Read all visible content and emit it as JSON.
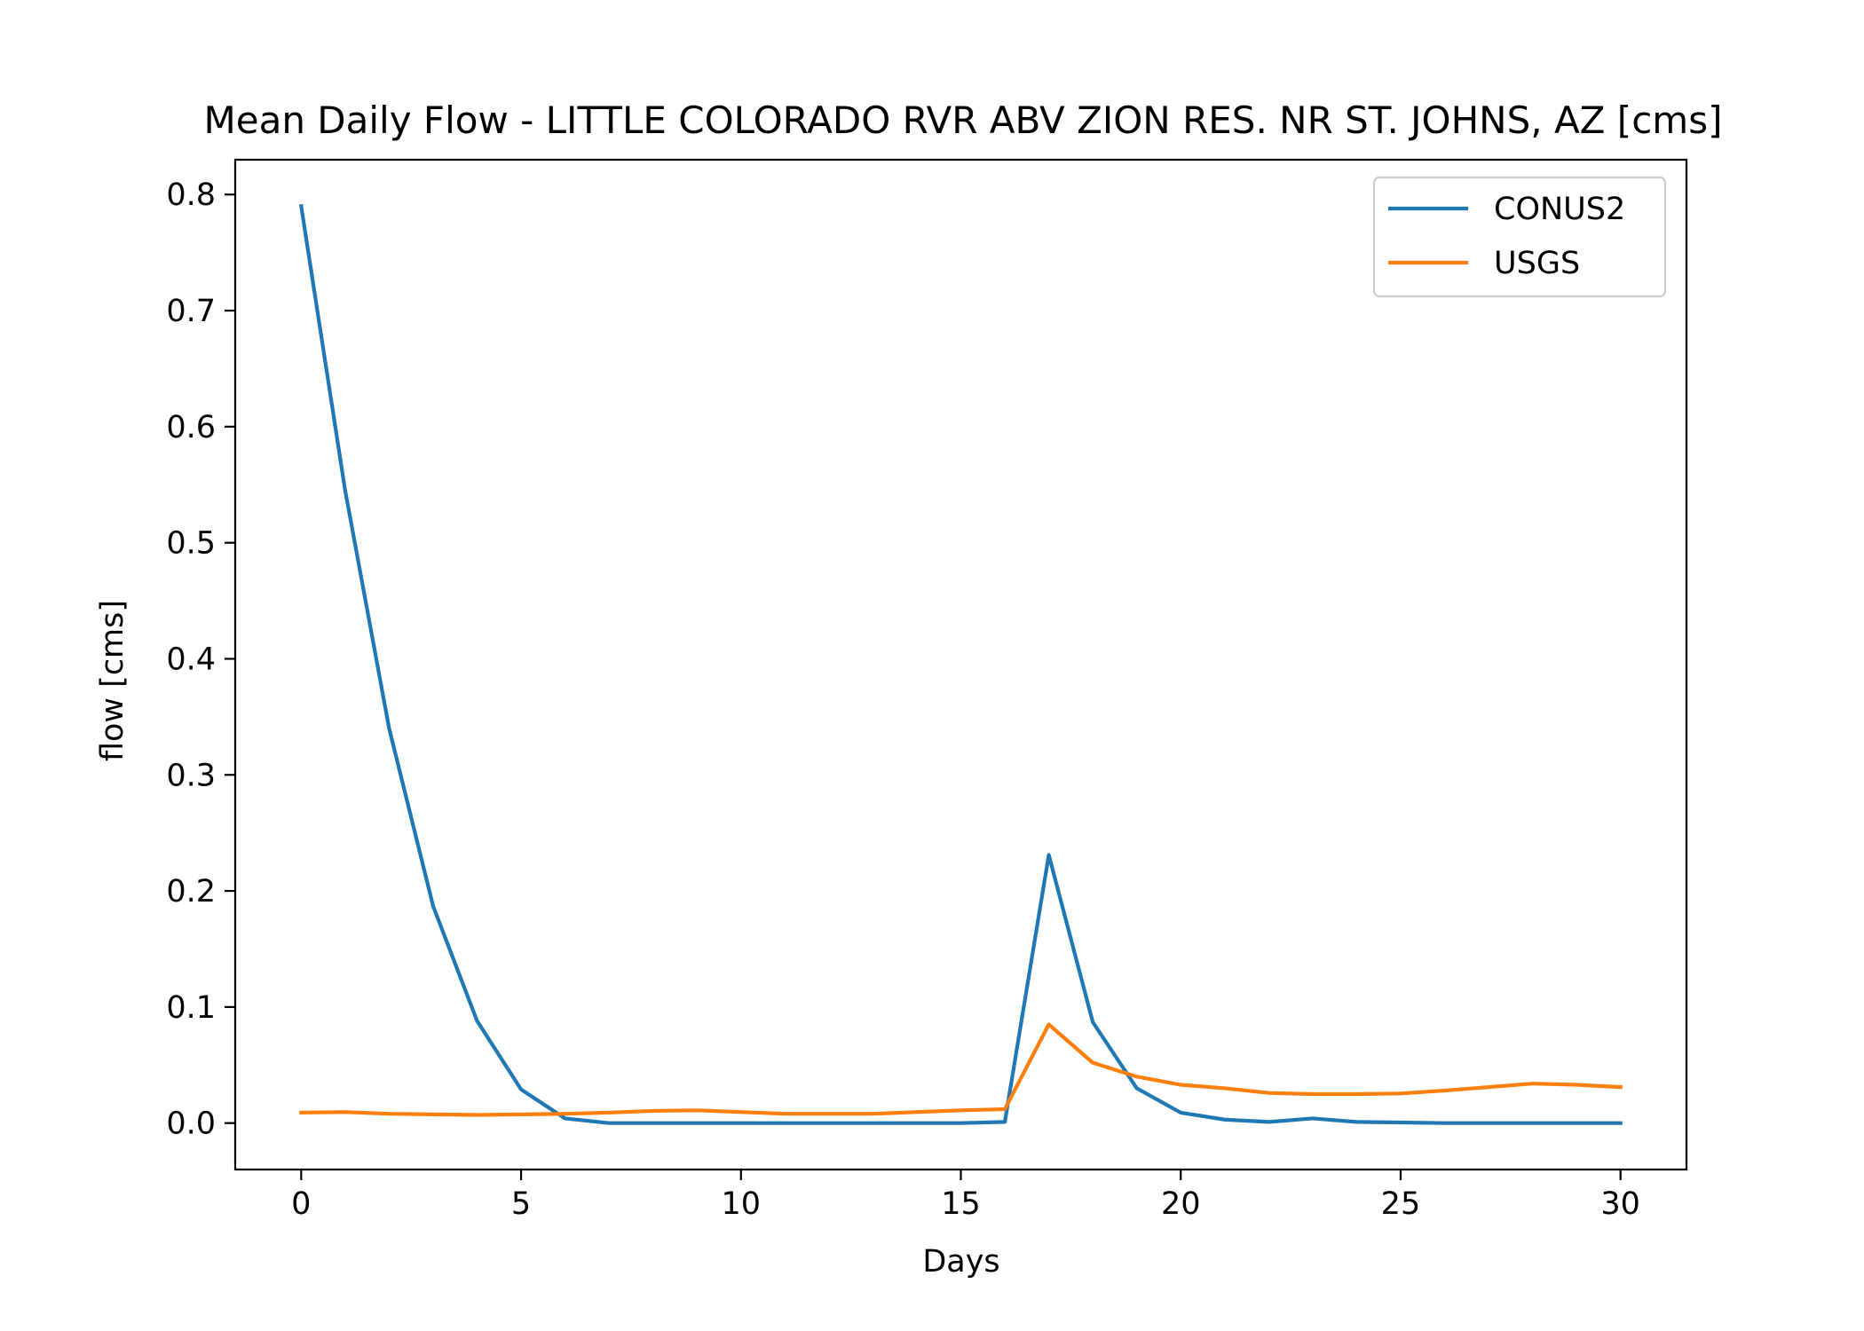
{
  "chart_data": {
    "type": "line",
    "title": "Mean Daily Flow - LITTLE COLORADO RVR ABV ZION RES. NR ST. JOHNS, AZ [cms]",
    "xlabel": "Days",
    "ylabel": "flow [cms]",
    "xlim": [
      -1.5,
      31.5
    ],
    "ylim": [
      -0.04,
      0.83
    ],
    "xticks": [
      0,
      5,
      10,
      15,
      20,
      25,
      30
    ],
    "xtick_labels": [
      "0",
      "5",
      "10",
      "15",
      "20",
      "25",
      "30"
    ],
    "yticks": [
      0.0,
      0.1,
      0.2,
      0.3,
      0.4,
      0.5,
      0.6,
      0.7,
      0.8
    ],
    "ytick_labels": [
      "0.0",
      "0.1",
      "0.2",
      "0.3",
      "0.4",
      "0.5",
      "0.6",
      "0.7",
      "0.8"
    ],
    "grid": false,
    "legend_position": "top-right",
    "x": [
      0,
      1,
      2,
      3,
      4,
      5,
      6,
      7,
      8,
      9,
      10,
      11,
      12,
      13,
      14,
      15,
      16,
      17,
      18,
      19,
      20,
      21,
      22,
      23,
      24,
      25,
      26,
      27,
      28,
      29,
      30
    ],
    "series": [
      {
        "name": "CONUS2",
        "color": "#1f77b4",
        "values": [
          0.79,
          0.545,
          0.34,
          0.187,
          0.088,
          0.029,
          0.004,
          0.0,
          0.0,
          0.0,
          0.0,
          0.0,
          0.0,
          0.0,
          0.0,
          0.0,
          0.001,
          0.231,
          0.087,
          0.03,
          0.009,
          0.003,
          0.001,
          0.004,
          0.001,
          0.0005,
          0.0,
          0.0,
          0.0,
          0.0,
          0.0
        ]
      },
      {
        "name": "USGS",
        "color": "#ff7f0e",
        "values": [
          0.009,
          0.0095,
          0.008,
          0.0075,
          0.007,
          0.0075,
          0.008,
          0.009,
          0.0105,
          0.011,
          0.0095,
          0.008,
          0.008,
          0.008,
          0.0095,
          0.011,
          0.012,
          0.085,
          0.052,
          0.04,
          0.033,
          0.03,
          0.026,
          0.025,
          0.025,
          0.0255,
          0.028,
          0.031,
          0.034,
          0.033,
          0.031
        ]
      }
    ]
  }
}
